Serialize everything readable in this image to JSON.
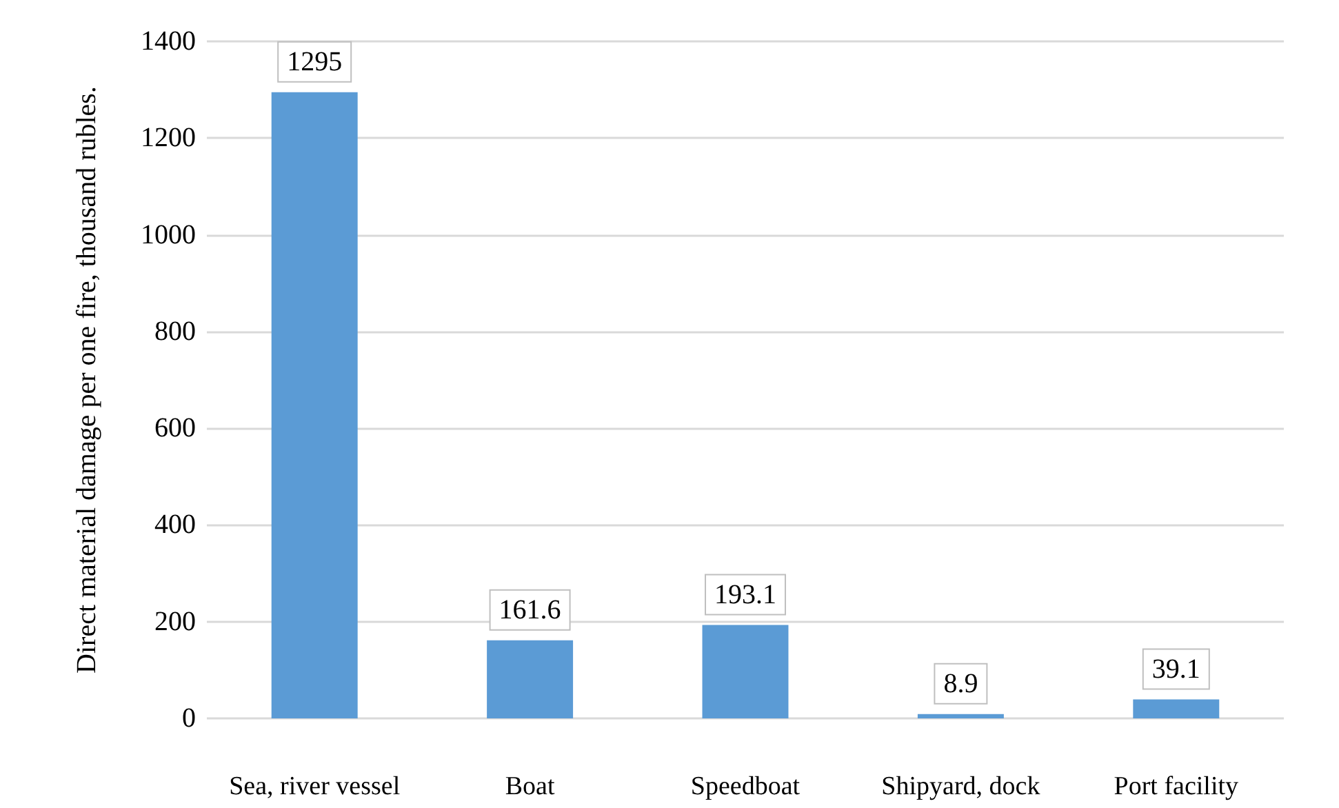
{
  "chart_data": {
    "type": "bar",
    "ylabel": "Direct material damage per one fire, thousand rubles.",
    "categories": [
      "Sea, river vessel",
      "Boat",
      "Speedboat",
      "Shipyard, dock",
      "Port facility"
    ],
    "values": [
      1295,
      161.6,
      193.1,
      8.9,
      39.1
    ],
    "color": "#5b9bd5",
    "ylim": [
      0,
      1400
    ],
    "yticks": [
      0,
      200,
      400,
      600,
      800,
      1000,
      1200,
      1400
    ],
    "grid": "y",
    "data_labels": true
  }
}
